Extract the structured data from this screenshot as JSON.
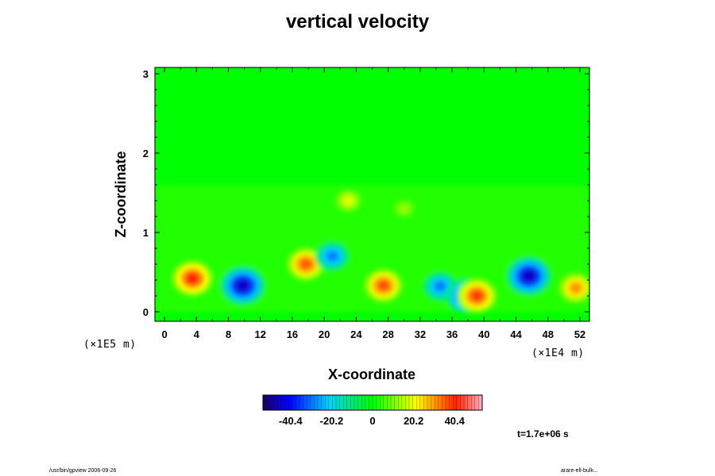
{
  "chart_data": {
    "type": "heatmap",
    "title": "vertical velocity",
    "xlabel": "X-coordinate",
    "ylabel": "Z-coordinate",
    "x_ticks": [
      "0",
      "4",
      "8",
      "12",
      "16",
      "20",
      "24",
      "28",
      "32",
      "36",
      "40",
      "44",
      "48",
      "52"
    ],
    "y_ticks": [
      "0",
      "1",
      "2",
      "3"
    ],
    "x_scale_note": "(×1E4 m)",
    "y_scale_note": "(×1E5 m)",
    "xlim": [
      -1.2,
      53.2
    ],
    "ylim": [
      -0.12,
      3.08
    ],
    "colorbar": {
      "ticks": [
        "-40.4",
        "-20.2",
        "0",
        "20.2",
        "40.4"
      ],
      "tick_values": [
        -40.4,
        -20.2,
        0,
        20.2,
        40.4
      ],
      "range": [
        -54,
        54
      ]
    },
    "background_value": 2,
    "features": [
      {
        "x": 3.5,
        "z": 0.42,
        "value": 40
      },
      {
        "x": 9.8,
        "z": 0.33,
        "value": -45
      },
      {
        "x": 17.7,
        "z": 0.6,
        "value": 35
      },
      {
        "x": 21,
        "z": 0.7,
        "value": -28
      },
      {
        "x": 27.4,
        "z": 0.33,
        "value": 36
      },
      {
        "x": 34.5,
        "z": 0.32,
        "value": -28
      },
      {
        "x": 37.7,
        "z": 0.2,
        "value": -38
      },
      {
        "x": 39.1,
        "z": 0.2,
        "value": 38
      },
      {
        "x": 45.6,
        "z": 0.45,
        "value": -45
      },
      {
        "x": 51.5,
        "z": 0.3,
        "value": 30
      },
      {
        "x": 23,
        "z": 1.4,
        "value": 18
      },
      {
        "x": 30,
        "z": 1.3,
        "value": 12
      }
    ]
  },
  "time_label": "t=1.7e+06 s",
  "footer_left": "/usr/bin/gpview 2006-09-26",
  "footer_right": "arare-ell-bulk..."
}
